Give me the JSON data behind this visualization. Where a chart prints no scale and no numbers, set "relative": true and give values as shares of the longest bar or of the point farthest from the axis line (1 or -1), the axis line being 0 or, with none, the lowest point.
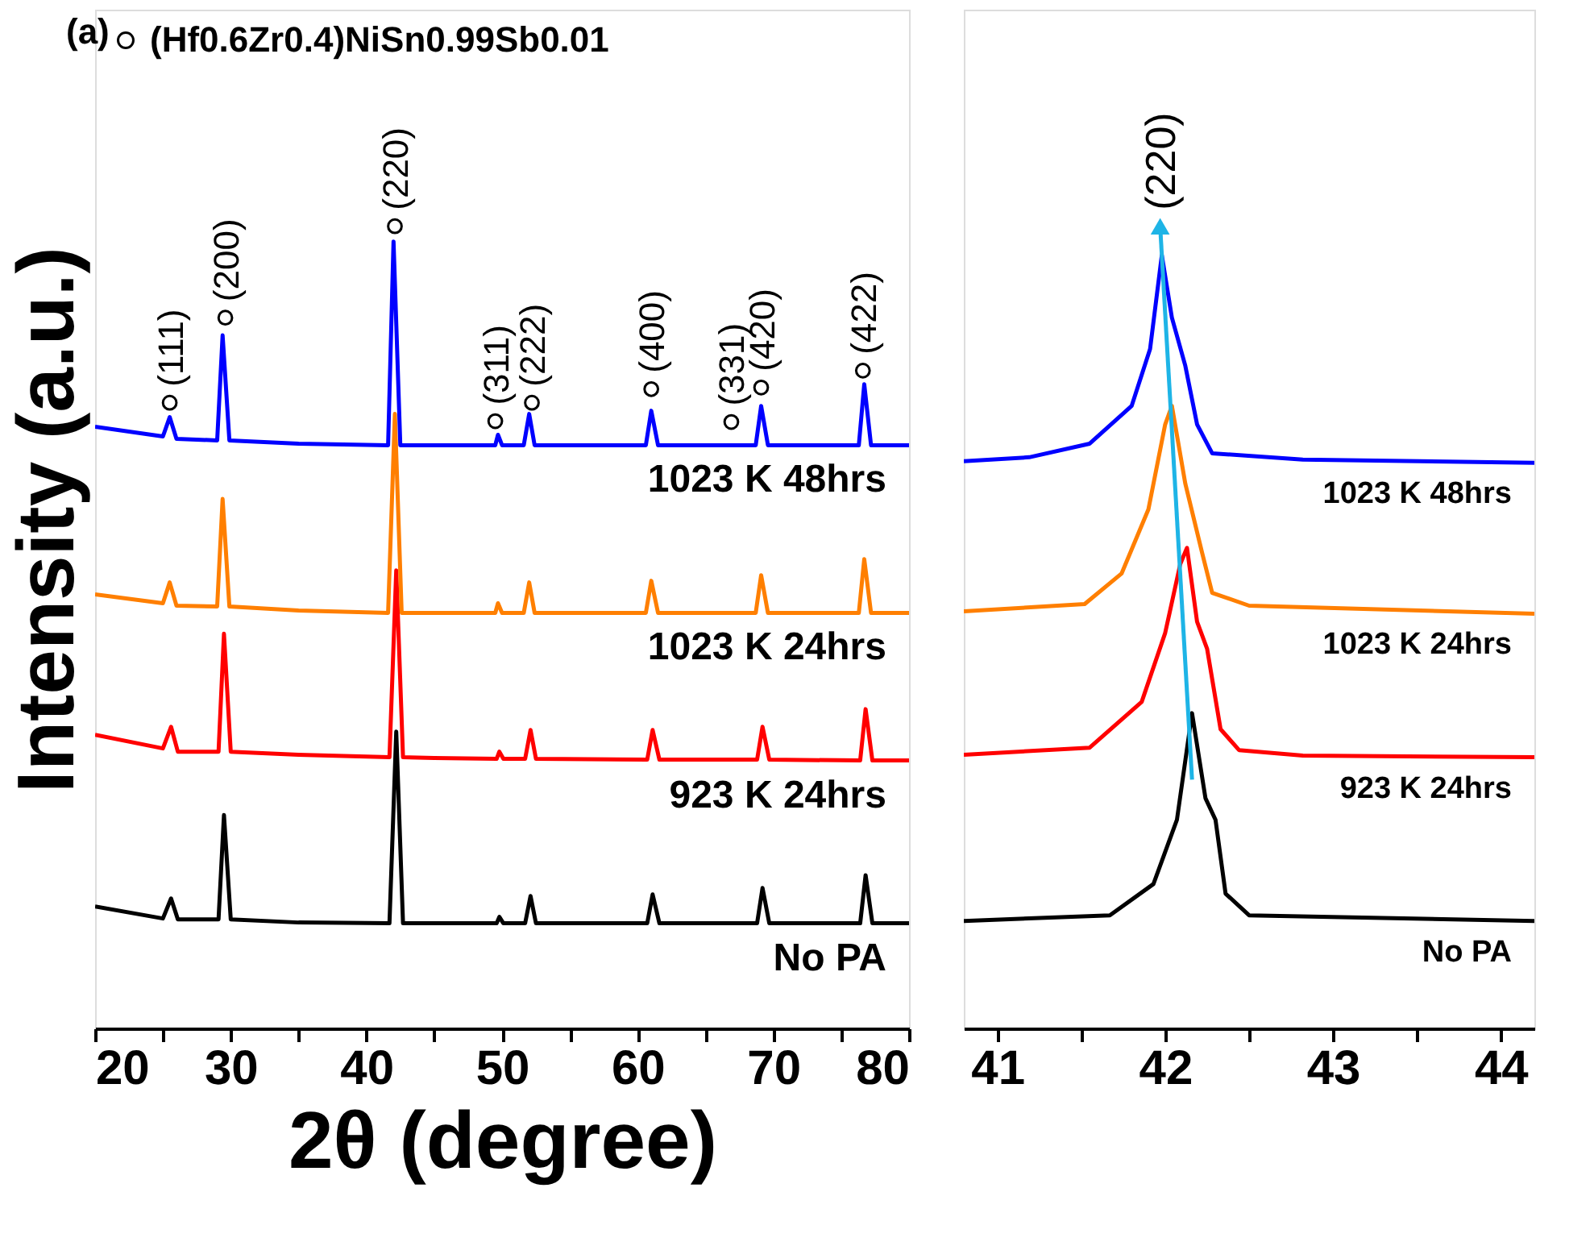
{
  "chart_data": [
    {
      "type": "line",
      "xlabel": "2θ (degree)",
      "ylabel": "Intensity (a.u.)",
      "relative": true,
      "legend": "top left",
      "tick_labels": "x",
      "xlim": [
        20,
        80
      ],
      "xticks": [
        20,
        {
          "value": 25,
          "label": null
        },
        30,
        {
          "value": 35,
          "label": null
        },
        40,
        {
          "value": 45,
          "label": null
        },
        50,
        {
          "value": 55,
          "label": null
        },
        60,
        {
          "value": 65,
          "label": null
        },
        70,
        {
          "value": 75,
          "label": null
        },
        80
      ],
      "annotations": [
        "(a)",
        {
          "text": "(111)",
          "x": 25.5,
          "y": 0.78
        },
        {
          "text": "(200)",
          "x": 29.6,
          "y": 0.886
        },
        {
          "text": "(220)",
          "x": 42.1,
          "y": 1.0
        },
        {
          "text": "(311)",
          "x": 49.5,
          "y": 0.757
        },
        {
          "text": "(222)",
          "x": 52.2,
          "y": 0.78
        },
        {
          "text": "(400)",
          "x": 61.0,
          "y": 0.797
        },
        {
          "text": "(331)",
          "x": 66.9,
          "y": 0.756
        },
        {
          "text": "(420)",
          "x": 69.1,
          "y": 0.799
        },
        {
          "text": "(422)",
          "x": 76.6,
          "y": 0.82
        }
      ],
      "series": [
        {
          "name": "No PA",
          "color": "#000000",
          "x": [
            20,
            25,
            25.6,
            26.1,
            29.1,
            29.5,
            30,
            35,
            41.7,
            42.2,
            42.7,
            45,
            49.6,
            49.8,
            50.1,
            51.7,
            52.1,
            52.5,
            60.7,
            61.1,
            61.6,
            68.8,
            69.2,
            69.7,
            76.4,
            76.8,
            77.3,
            80
          ],
          "values": [
            0.152,
            0.137,
            0.162,
            0.136,
            0.136,
            0.266,
            0.136,
            0.132,
            0.131,
            0.37,
            0.131,
            0.131,
            0.131,
            0.139,
            0.131,
            0.131,
            0.165,
            0.131,
            0.131,
            0.167,
            0.131,
            0.131,
            0.175,
            0.131,
            0.131,
            0.191,
            0.131,
            0.131
          ]
        },
        {
          "name": "923 K 24hrs",
          "color": "#ff0000",
          "x": [
            20,
            25,
            25.6,
            26.1,
            29.1,
            29.5,
            30,
            35,
            41.7,
            42.2,
            42.7,
            45,
            49.6,
            49.8,
            50.1,
            51.7,
            52.1,
            52.5,
            60.7,
            61.1,
            61.6,
            68.8,
            69.2,
            69.7,
            76.4,
            76.8,
            77.3,
            80
          ],
          "values": [
            0.366,
            0.349,
            0.376,
            0.345,
            0.345,
            0.492,
            0.345,
            0.341,
            0.338,
            0.571,
            0.338,
            0.337,
            0.336,
            0.345,
            0.336,
            0.336,
            0.372,
            0.336,
            0.335,
            0.372,
            0.335,
            0.335,
            0.376,
            0.335,
            0.334,
            0.398,
            0.334,
            0.334
          ]
        },
        {
          "name": "1023 K 24hrs",
          "color": "#ff7f00",
          "x": [
            20,
            25,
            25.5,
            26,
            29,
            29.4,
            29.9,
            35,
            41.6,
            42.1,
            42.6,
            45,
            49.5,
            49.7,
            50,
            51.6,
            52.0,
            52.4,
            60.6,
            61.0,
            61.5,
            68.7,
            69.1,
            69.6,
            76.3,
            76.7,
            77.2,
            80
          ],
          "values": [
            0.541,
            0.53,
            0.556,
            0.527,
            0.526,
            0.66,
            0.526,
            0.521,
            0.518,
            0.766,
            0.518,
            0.518,
            0.518,
            0.53,
            0.518,
            0.518,
            0.556,
            0.518,
            0.518,
            0.558,
            0.518,
            0.518,
            0.565,
            0.518,
            0.518,
            0.585,
            0.518,
            0.518
          ]
        },
        {
          "name": "1023 K 48hrs",
          "color": "#0000ff",
          "x": [
            20,
            25,
            25.5,
            26,
            29,
            29.4,
            29.9,
            35,
            41.6,
            42.0,
            42.5,
            45,
            49.5,
            49.7,
            50,
            51.6,
            52.0,
            52.4,
            60.6,
            61.0,
            61.5,
            68.7,
            69.1,
            69.6,
            76.3,
            76.7,
            77.2,
            80
          ],
          "values": [
            0.75,
            0.738,
            0.762,
            0.735,
            0.733,
            0.864,
            0.733,
            0.729,
            0.727,
            0.981,
            0.727,
            0.727,
            0.727,
            0.74,
            0.727,
            0.727,
            0.766,
            0.727,
            0.727,
            0.77,
            0.727,
            0.727,
            0.776,
            0.727,
            0.727,
            0.803,
            0.727,
            0.727
          ]
        },
        {
          "type": "scatter",
          "name": "(Hf0.6Zr0.4)NiSn0.99Sb0.01",
          "color": "#000000",
          "marker": "circle",
          "x": [
            25.5,
            29.6,
            42.1,
            49.5,
            52.2,
            61.0,
            66.9,
            69.1,
            76.6
          ],
          "values": [
            0.78,
            0.886,
            1.0,
            0.757,
            0.78,
            0.797,
            0.756,
            0.799,
            0.82
          ]
        }
      ]
    },
    {
      "type": "line",
      "relative": true,
      "tick_labels": "x",
      "xlim": [
        40.8,
        44.2
      ],
      "xticks": [
        41,
        {
          "value": 41.5,
          "label": null
        },
        42,
        {
          "value": 42.5,
          "label": null
        },
        43,
        {
          "value": 43.5,
          "label": null
        },
        44
      ],
      "annotations": [
        {
          "text": "(220)",
          "x": 41.97,
          "y": 1.0
        }
      ],
      "series": [
        {
          "name": "No PA",
          "color": "#000000",
          "x": [
            40.8,
            41.67,
            41.93,
            42.07,
            42.16,
            42.24,
            42.3,
            42.36,
            42.5,
            44.2
          ],
          "values": [
            0.134,
            0.141,
            0.18,
            0.26,
            0.393,
            0.287,
            0.26,
            0.168,
            0.141,
            0.134
          ]
        },
        {
          "name": "923 K 24hrs",
          "color": "#ff0000",
          "x": [
            40.8,
            41.55,
            41.86,
            42.0,
            42.09,
            42.13,
            42.19,
            42.25,
            42.33,
            42.44,
            42.82,
            44.2
          ],
          "values": [
            0.341,
            0.35,
            0.407,
            0.493,
            0.579,
            0.599,
            0.507,
            0.473,
            0.373,
            0.347,
            0.34,
            0.338
          ]
        },
        {
          "name": "1023 K 24hrs",
          "color": "#ff7f00",
          "x": [
            40.8,
            41.52,
            41.74,
            41.9,
            42.0,
            42.04,
            42.12,
            42.22,
            42.28,
            42.5,
            44.2
          ],
          "values": [
            0.52,
            0.529,
            0.567,
            0.647,
            0.753,
            0.776,
            0.679,
            0.593,
            0.543,
            0.527,
            0.517
          ]
        },
        {
          "name": "1023 K 48hrs",
          "color": "#0000ff",
          "x": [
            40.8,
            41.19,
            41.55,
            41.8,
            41.91,
            41.98,
            42.04,
            42.12,
            42.19,
            42.28,
            42.82,
            44.2
          ],
          "values": [
            0.707,
            0.712,
            0.729,
            0.776,
            0.847,
            0.964,
            0.886,
            0.826,
            0.753,
            0.717,
            0.709,
            0.705
          ]
        },
        {
          "type": "line",
          "color": "#1eb4e6",
          "marker": "triangle",
          "x": [
            42.16,
            41.97
          ],
          "values": [
            0.31,
            1.0
          ]
        }
      ]
    }
  ]
}
